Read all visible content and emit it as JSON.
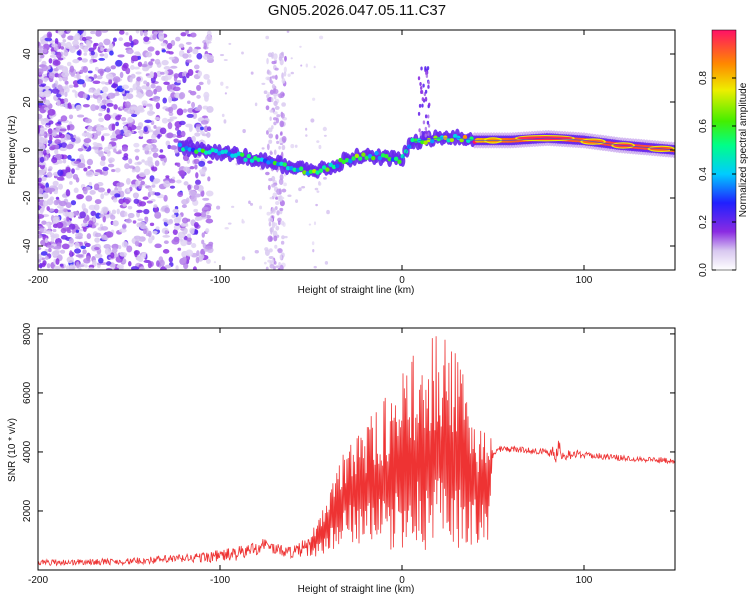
{
  "title": "GN05.2026.047.05.11.C37",
  "chart_data": [
    {
      "type": "heatmap",
      "xlabel": "Height of straight line (km)",
      "ylabel": "Frequency (Hz)",
      "xlim": [
        -200,
        150
      ],
      "ylim": [
        -50,
        50
      ],
      "x_ticks": [
        "-200",
        "-100",
        "0",
        "100"
      ],
      "x_tick_values": [
        -200,
        -100,
        0,
        100
      ],
      "y_ticks": [
        "-40",
        "-20",
        "0",
        "20",
        "40"
      ],
      "y_tick_values": [
        -40,
        -20,
        0,
        20,
        40
      ],
      "colorbar": {
        "label": "Normalized spectral amplitude",
        "range": [
          0,
          1
        ],
        "ticks": [
          "0.0",
          "0.2",
          "0.4",
          "0.6",
          "0.8"
        ],
        "tick_values": [
          0.0,
          0.2,
          0.4,
          0.6,
          0.8
        ]
      },
      "ridge": {
        "description_x": [
          -120,
          -100,
          -80,
          -60,
          -50,
          -40,
          -30,
          -20,
          -10,
          0,
          5,
          10,
          20,
          30,
          40,
          60,
          80,
          100,
          120,
          150
        ],
        "description_y": [
          1,
          -1,
          -4,
          -7,
          -9,
          -7,
          -4,
          -2,
          -3,
          -4,
          3,
          4,
          5,
          5,
          4,
          4,
          5,
          4,
          2,
          0
        ],
        "description_amp": [
          0.45,
          0.5,
          0.45,
          0.5,
          0.55,
          0.5,
          0.55,
          0.55,
          0.5,
          0.5,
          0.55,
          0.6,
          0.6,
          0.65,
          0.8,
          0.9,
          0.95,
          0.9,
          0.95,
          0.9
        ]
      }
    },
    {
      "type": "line",
      "xlabel": "Height of straight line (km)",
      "ylabel": "SNR (10 * v/v)",
      "xlim": [
        -200,
        150
      ],
      "ylim": [
        0,
        8200
      ],
      "x_ticks": [
        "-200",
        "-100",
        "0",
        "100"
      ],
      "x_tick_values": [
        -200,
        -100,
        0,
        100
      ],
      "y_ticks": [
        "2000",
        "4000",
        "6000",
        "8000"
      ],
      "y_tick_values": [
        2000,
        4000,
        6000,
        8000
      ],
      "color": "#ee3333",
      "envelope_x": [
        -200,
        -150,
        -110,
        -90,
        -80,
        -75,
        -70,
        -60,
        -50,
        -40,
        -30,
        -20,
        -10,
        0,
        10,
        20,
        30,
        40,
        48,
        50,
        60,
        80,
        85,
        88,
        100,
        120,
        150
      ],
      "envelope_low": [
        150,
        180,
        250,
        300,
        500,
        700,
        500,
        400,
        400,
        600,
        900,
        800,
        700,
        600,
        700,
        500,
        600,
        800,
        1000,
        3900,
        4000,
        3900,
        3600,
        3700,
        3800,
        3700,
        3600
      ],
      "envelope_high": [
        350,
        400,
        600,
        800,
        1000,
        1100,
        900,
        800,
        1200,
        2800,
        4800,
        5000,
        5800,
        6600,
        7700,
        8100,
        7300,
        5500,
        4800,
        4200,
        4200,
        4100,
        4500,
        4200,
        4000,
        3900,
        3800
      ]
    }
  ]
}
